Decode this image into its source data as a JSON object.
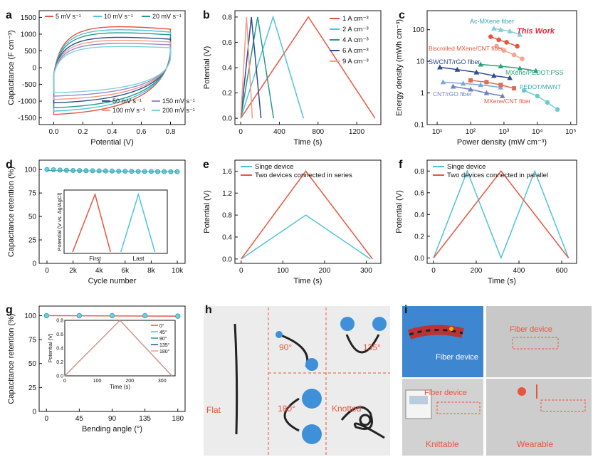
{
  "panel_letters": [
    "a",
    "b",
    "c",
    "d",
    "e",
    "f",
    "g",
    "h",
    "i"
  ],
  "colors": {
    "red": "#e8553f",
    "cyan": "#4fc3d9",
    "teal": "#1f9c8c",
    "navy": "#2f4a8f",
    "purple": "#9a8ac9",
    "salmon": "#f29a86",
    "green": "#2aa37b",
    "blue": "#3a5fb4",
    "lightblue": "#7aa7dc",
    "steel": "#6c82bf"
  },
  "photo_h": {
    "flat": "Flat",
    "deg90": "90°",
    "deg135": "135°",
    "deg180": "180°",
    "knotted": "Knotted"
  },
  "photo_i": {
    "fiber1": "Fiber device",
    "fiber2": "Fiber device",
    "fiber3": "Fiber device",
    "knittable": "Knittable",
    "wearable": "Wearable"
  },
  "chart_data": [
    {
      "id": "a",
      "type": "line",
      "xlabel": "Potential (V)",
      "ylabel": "Capacitance (F cm⁻³)",
      "xlim": [
        -0.1,
        0.9
      ],
      "ylim": [
        -1700,
        1700
      ],
      "xticks": [
        0.0,
        0.2,
        0.4,
        0.6,
        0.8
      ],
      "xtick_labels": [
        "0.0",
        "0.2",
        "0.4",
        "0.6",
        "0.8"
      ],
      "yticks": [
        -1500,
        -1000,
        -500,
        0,
        500,
        1000,
        1500
      ],
      "ytick_labels": [
        "-1500",
        "-1000",
        "-500",
        "0",
        "500",
        "1000",
        "1500"
      ],
      "legend_top": [
        "5 mV s⁻¹",
        "10 mV s⁻¹",
        "20 mV s⁻¹"
      ],
      "legend_bottom": [
        "50 mV s⁻¹",
        "150 mV s⁻¹",
        "100 mV s⁻¹",
        "200 mV s⁻¹"
      ],
      "series": [
        {
          "name": "5 mV s⁻¹",
          "color": "#e8553f",
          "upper": 1350,
          "lower": -1400
        },
        {
          "name": "10 mV s⁻¹",
          "color": "#4fc3d9",
          "upper": 1250,
          "lower": -1300
        },
        {
          "name": "20 mV s⁻¹",
          "color": "#1f9c8c",
          "upper": 1150,
          "lower": -1200
        },
        {
          "name": "50 mV s⁻¹",
          "color": "#2f4a8f",
          "upper": 1000,
          "lower": -1050
        },
        {
          "name": "100 mV s⁻¹",
          "color": "#f29a86",
          "upper": 900,
          "lower": -950
        },
        {
          "name": "150 mV s⁻¹",
          "color": "#9a8ac9",
          "upper": 800,
          "lower": -850
        },
        {
          "name": "200 mV s⁻¹",
          "color": "#7fd0e0",
          "upper": 700,
          "lower": -750
        }
      ]
    },
    {
      "id": "b",
      "type": "line",
      "xlabel": "Time (s)",
      "ylabel": "Potential (V)",
      "xlim": [
        -60,
        1450
      ],
      "ylim": [
        -0.05,
        0.85
      ],
      "xticks": [
        0,
        400,
        800,
        1200
      ],
      "xtick_labels": [
        "0",
        "400",
        "800",
        "1200"
      ],
      "yticks": [
        0,
        0.2,
        0.4,
        0.6,
        0.8
      ],
      "ytick_labels": [
        "0.0",
        "0.2",
        "0.4",
        "0.6",
        "0.8"
      ],
      "series": [
        {
          "name": "1 A cm⁻³",
          "color": "#e8553f",
          "peak": 700,
          "end": 1390
        },
        {
          "name": "2 A cm⁻³",
          "color": "#4fc3d9",
          "peak": 335,
          "end": 650
        },
        {
          "name": "4 A cm⁻³",
          "color": "#1f9c8c",
          "peak": 175,
          "end": 340
        },
        {
          "name": "6 A cm⁻³",
          "color": "#2f4a8f",
          "peak": 110,
          "end": 210
        },
        {
          "name": "9 A cm⁻³",
          "color": "#f29a86",
          "peak": 60,
          "end": 120
        }
      ]
    },
    {
      "id": "c",
      "type": "scatter",
      "xlabel": "Power density (mW cm⁻³)",
      "ylabel": "Energy density (mWh cm⁻³)",
      "xscale": "log",
      "yscale": "log",
      "xlim": [
        5,
        150000
      ],
      "ylim": [
        0.1,
        400
      ],
      "xticks": [
        10,
        100,
        1000,
        10000,
        100000
      ],
      "xtick_labels": [
        "10¹",
        "10²",
        "10³",
        "10⁴",
        "10⁵"
      ],
      "yticks": [
        0.1,
        1,
        10,
        100
      ],
      "ytick_labels": [
        "0.1",
        "1",
        "10",
        "100"
      ],
      "series": [
        {
          "name": "Ac-MXene fiber",
          "color": "#7fcfd8",
          "x": [
            500,
            800,
            1500,
            3000
          ],
          "y": [
            110,
            100,
            90,
            70
          ]
        },
        {
          "name": "This Work",
          "color": "#e8553f",
          "x": [
            400,
            700,
            1200,
            2500
          ],
          "y": [
            60,
            48,
            40,
            30
          ]
        },
        {
          "name": "Biscrolled MXene/CNT fiber",
          "color": "#f4a58f",
          "x": [
            600,
            1000,
            2000,
            3500
          ],
          "y": [
            30,
            22,
            16,
            12
          ]
        },
        {
          "name": "SWCNT/rGO fiber",
          "color": "#2f4a8f",
          "x": [
            12,
            40,
            150,
            500,
            1500
          ],
          "y": [
            6.5,
            5.5,
            4.5,
            3.5,
            3
          ]
        },
        {
          "name": "MXene/PEDOT:PSS",
          "color": "#2aa37b",
          "x": [
            200,
            800,
            3000,
            9000
          ],
          "y": [
            8,
            7,
            6,
            5
          ]
        },
        {
          "name": "CNT/rGO fiber",
          "color": "#7aa7dc",
          "x": [
            15,
            60,
            200,
            800
          ],
          "y": [
            2.2,
            2.0,
            1.8,
            1.5
          ]
        },
        {
          "name": "PEDOT/MWNT",
          "color": "#6ccad3",
          "x": [
            4000,
            10000,
            20000,
            40000
          ],
          "y": [
            1.2,
            0.8,
            0.5,
            0.3
          ]
        },
        {
          "name": "MXene/CNT fiber",
          "color": "#e06a57",
          "x": [
            100,
            300,
            800,
            2000
          ],
          "y": [
            2.5,
            2.2,
            1.8,
            1.4
          ]
        },
        {
          "name": "",
          "color": "#6c82bf",
          "x": [
            30,
            100,
            300,
            900
          ],
          "y": [
            1.6,
            1.3,
            1.0,
            0.8
          ]
        }
      ]
    },
    {
      "id": "d",
      "type": "scatter",
      "xlabel": "Cycle number",
      "ylabel": "Capacitance retention (%)",
      "xlim": [
        -600,
        10600
      ],
      "ylim": [
        0,
        110
      ],
      "xticks": [
        0,
        2000,
        4000,
        6000,
        8000,
        10000
      ],
      "xtick_labels": [
        "0",
        "2k",
        "4k",
        "6k",
        "8k",
        "10k"
      ],
      "yticks": [
        0,
        25,
        50,
        75,
        100
      ],
      "ytick_labels": [
        "0",
        "25",
        "50",
        "75",
        "100"
      ],
      "x": [
        0,
        500,
        1000,
        1500,
        2000,
        2500,
        3000,
        3500,
        4000,
        4500,
        5000,
        5500,
        6000,
        6500,
        7000,
        7500,
        8000,
        8500,
        9000,
        9500,
        10000
      ],
      "y": [
        100,
        99.8,
        99.5,
        99.2,
        99,
        98.9,
        98.8,
        98.7,
        98.6,
        98.5,
        98.4,
        98.3,
        98.2,
        98.1,
        98,
        97.9,
        97.9,
        97.8,
        97.8,
        97.7,
        97.7
      ],
      "inset": {
        "ylabel": "Potential (V vs. Ag/AgCl)",
        "xtick_labels": [
          "First",
          "Last"
        ],
        "series": [
          {
            "name": "First",
            "color": "#e8553f"
          },
          {
            "name": "Last",
            "color": "#4fc3d9"
          }
        ]
      }
    },
    {
      "id": "e",
      "type": "line",
      "xlabel": "Time (s)",
      "ylabel": "Potential (V)",
      "xlim": [
        -15,
        335
      ],
      "ylim": [
        -0.08,
        1.8
      ],
      "xticks": [
        0,
        100,
        200,
        300
      ],
      "xtick_labels": [
        "0",
        "100",
        "200",
        "300"
      ],
      "yticks": [
        0,
        0.4,
        0.8,
        1.2,
        1.6
      ],
      "ytick_labels": [
        "0.0",
        "0.4",
        "0.8",
        "1.2",
        "1.6"
      ],
      "series": [
        {
          "name": "Singe device",
          "color": "#4fc3d9",
          "points": [
            [
              0,
              0
            ],
            [
              155,
              0.8
            ],
            [
              310,
              0
            ]
          ]
        },
        {
          "name": "Two devices connected in series",
          "color": "#e8553f",
          "points": [
            [
              0,
              0
            ],
            [
              155,
              1.6
            ],
            [
              315,
              0
            ]
          ]
        }
      ]
    },
    {
      "id": "f",
      "type": "line",
      "xlabel": "Time (s)",
      "ylabel": "Potential (V)",
      "xlim": [
        -30,
        670
      ],
      "ylim": [
        -0.05,
        0.9
      ],
      "xticks": [
        0,
        200,
        400,
        600
      ],
      "xtick_labels": [
        "0",
        "200",
        "400",
        "600"
      ],
      "yticks": [
        0,
        0.2,
        0.4,
        0.6,
        0.8
      ],
      "ytick_labels": [
        "0.0",
        "0.2",
        "0.4",
        "0.6",
        "0.8"
      ],
      "series": [
        {
          "name": "Singe device",
          "color": "#4fc3d9",
          "points": [
            [
              0,
              0
            ],
            [
              158,
              0.8
            ],
            [
              316,
              0
            ],
            [
              474,
              0.8
            ],
            [
              632,
              0
            ]
          ]
        },
        {
          "name": "Two devices connected in parallel",
          "color": "#e8553f",
          "points": [
            [
              0,
              0
            ],
            [
              316,
              0.8
            ],
            [
              632,
              0
            ]
          ]
        }
      ]
    },
    {
      "id": "g",
      "type": "scatter",
      "xlabel": "Bending angle (°)",
      "ylabel": "Capacitance retention (%)",
      "xlim": [
        -10,
        190
      ],
      "ylim": [
        0,
        110
      ],
      "xticks": [
        0,
        45,
        90,
        135,
        180
      ],
      "xtick_labels": [
        "0",
        "45",
        "90",
        "135",
        "180"
      ],
      "yticks": [
        0,
        25,
        50,
        75,
        100
      ],
      "ytick_labels": [
        "0",
        "25",
        "50",
        "75",
        "100"
      ],
      "x": [
        0,
        45,
        90,
        135,
        180
      ],
      "y": [
        100,
        100,
        100,
        100,
        99.5
      ],
      "inset": {
        "xlabel": "Time (s)",
        "ylabel": "Potential (V)",
        "xlim": [
          0,
          340
        ],
        "ylim": [
          0,
          0.8
        ],
        "xticks": [
          0,
          100,
          200,
          300
        ],
        "xtick_labels": [
          "0",
          "100",
          "200",
          "300"
        ],
        "yticks": [
          0,
          0.2,
          0.4,
          0.6,
          0.8
        ],
        "ytick_labels": [
          "0.0",
          "0.2",
          "0.4",
          "0.6",
          "0.8"
        ],
        "legend": [
          "0°",
          "45°",
          "90°",
          "135°",
          "180°"
        ],
        "legend_colors": [
          "#e8553f",
          "#4fc3d9",
          "#1f9c8c",
          "#2f4a8f",
          "#f29a86"
        ],
        "peak": 170,
        "end": 330
      }
    }
  ]
}
